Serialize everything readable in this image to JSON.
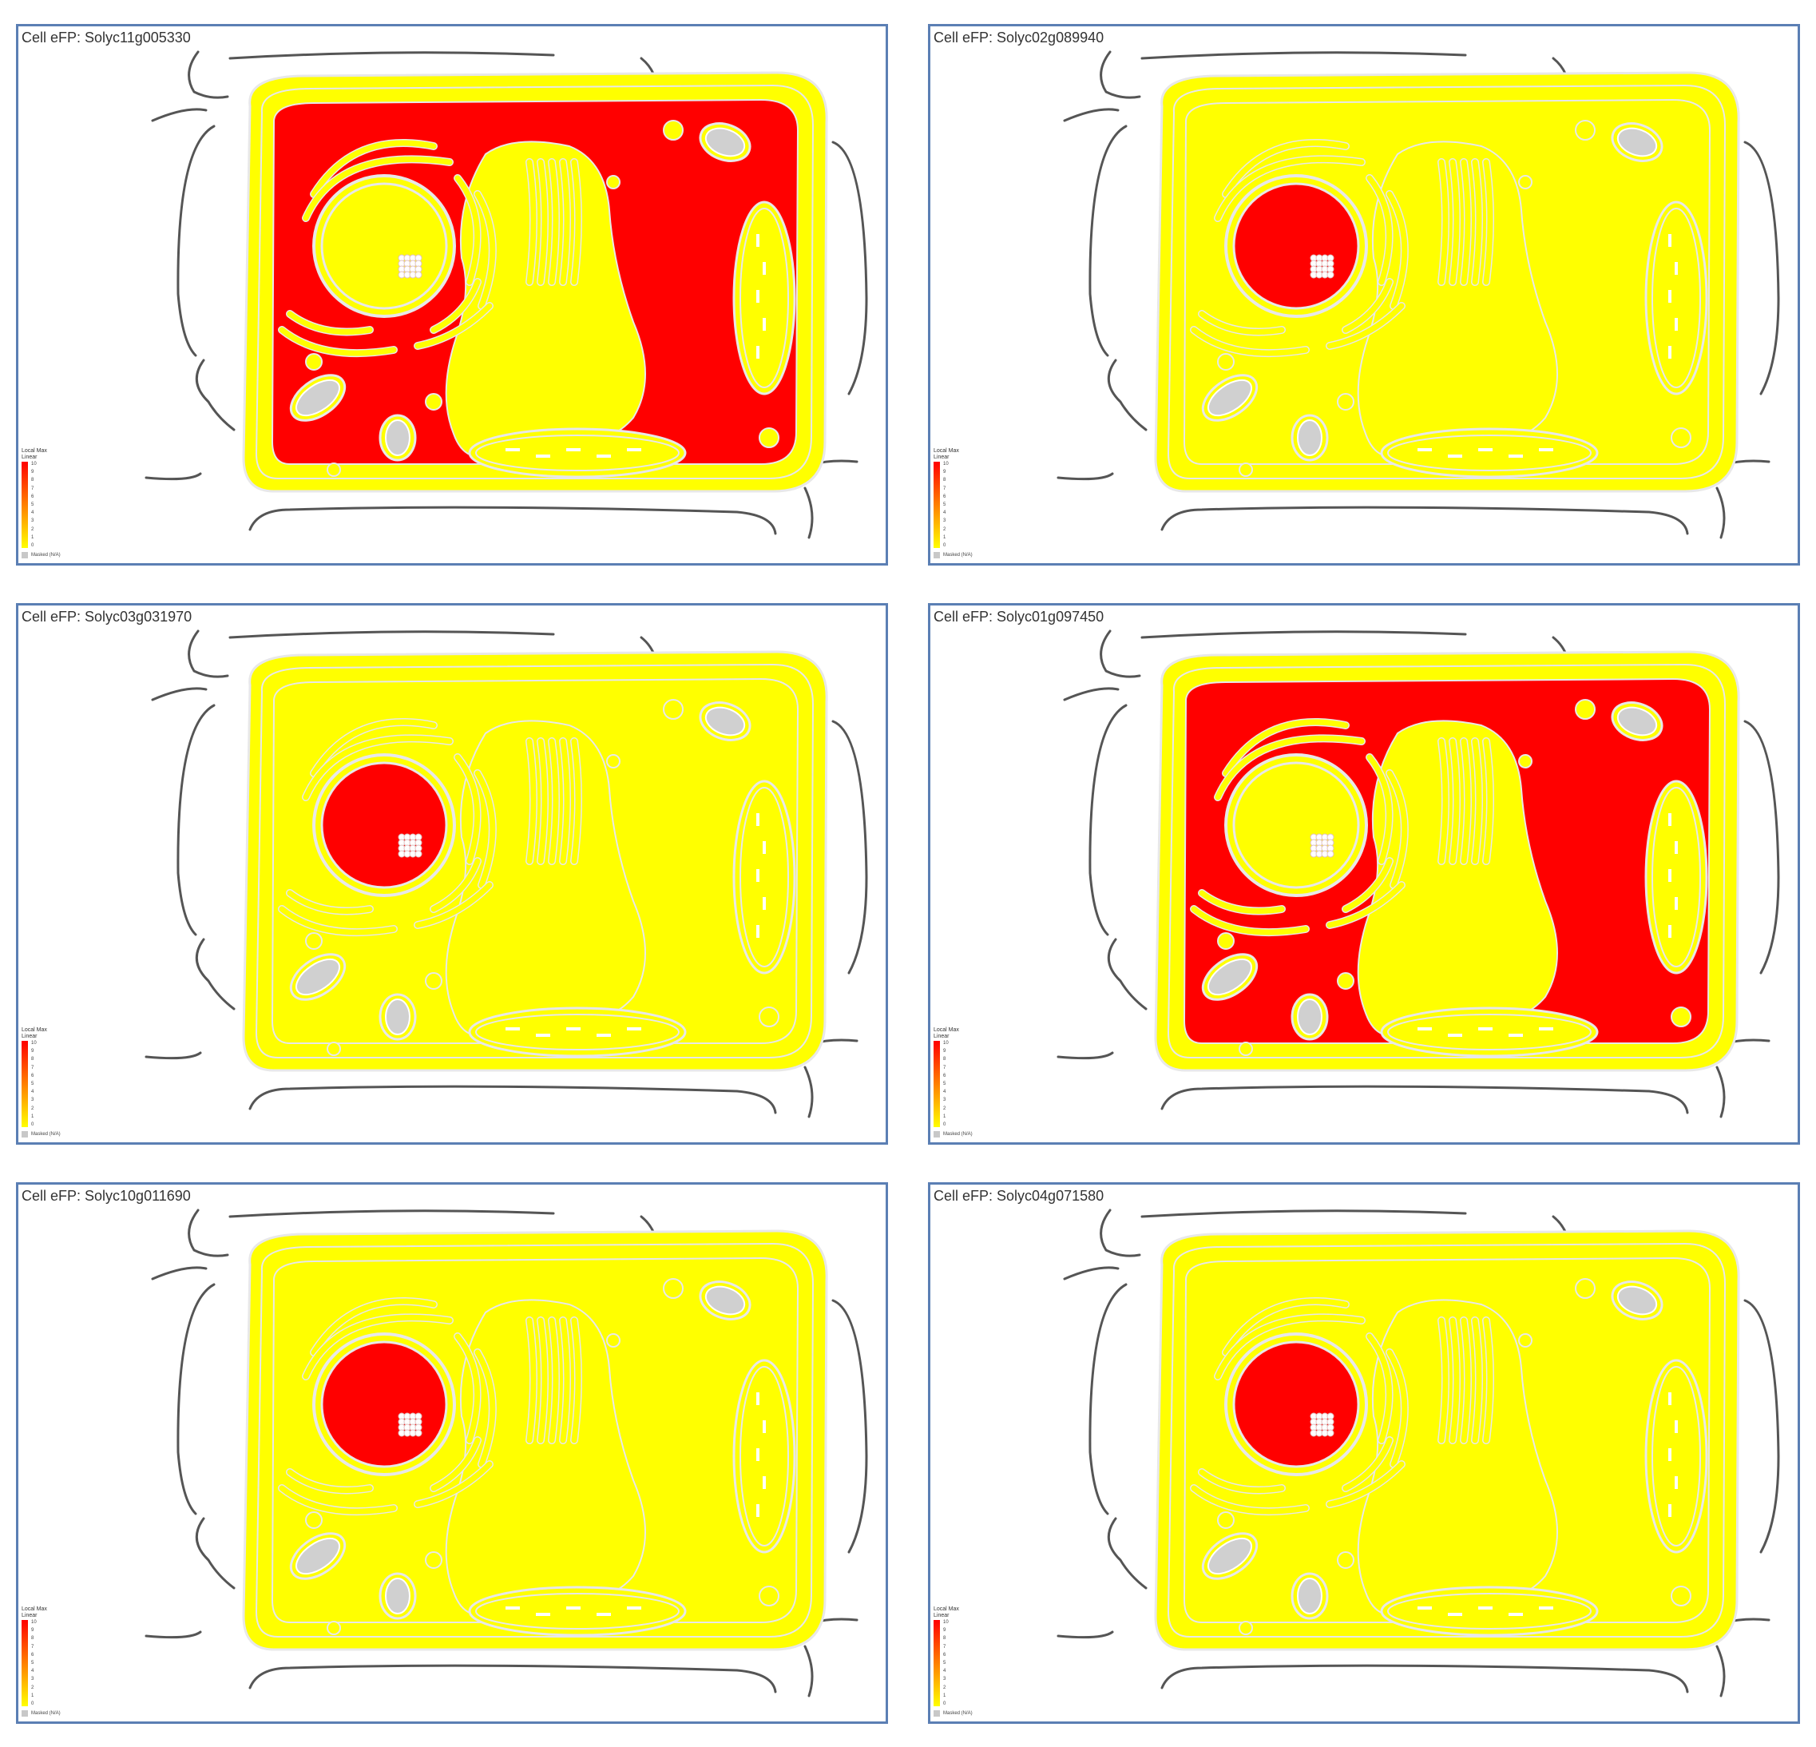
{
  "colors": {
    "high": "#ff0000",
    "low": "#ffff00",
    "membrane": "#e8e8e8",
    "wall": "#555555",
    "masked": "#c8c8c8",
    "border": "#5b7fb4"
  },
  "legend": {
    "title": "Local Max",
    "scale": "Linear",
    "ticks": [
      "10",
      "9",
      "8",
      "7",
      "6",
      "5",
      "4",
      "3",
      "2",
      "1",
      "0"
    ],
    "masked_label": "Masked (N/A)"
  },
  "panels": [
    {
      "title": "Cell eFP: Solyc11g005330",
      "cytosol": "high",
      "nucleus": "low"
    },
    {
      "title": "Cell eFP: Solyc02g089940",
      "cytosol": "low",
      "nucleus": "high"
    },
    {
      "title": "Cell eFP: Solyc03g031970",
      "cytosol": "low",
      "nucleus": "high"
    },
    {
      "title": "Cell eFP: Solyc01g097450",
      "cytosol": "high",
      "nucleus": "low"
    },
    {
      "title": "Cell eFP: Solyc10g011690",
      "cytosol": "low",
      "nucleus": "high"
    },
    {
      "title": "Cell eFP: Solyc04g071580",
      "cytosol": "low",
      "nucleus": "high"
    }
  ]
}
